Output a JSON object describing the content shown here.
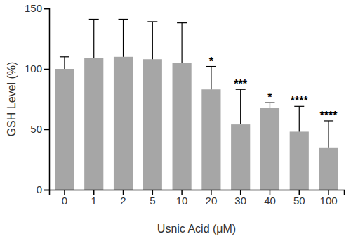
{
  "chart_data": {
    "type": "bar",
    "x_label": "Usnic Acid (μM)",
    "y_label": "GSH Level (%)",
    "categories": [
      "0",
      "1",
      "2",
      "5",
      "10",
      "20",
      "30",
      "40",
      "50",
      "100"
    ],
    "values": [
      100,
      109,
      110,
      108,
      105,
      83,
      54,
      68,
      48,
      35
    ],
    "errors": [
      10,
      32,
      31,
      31,
      33,
      19,
      29,
      4,
      21,
      22
    ],
    "significance": [
      null,
      null,
      null,
      null,
      null,
      "*",
      "***",
      "*",
      "****",
      "****"
    ],
    "color": "#a6a6a6",
    "ylim": [
      0,
      150
    ],
    "yticks": [
      0,
      50,
      100,
      150
    ],
    "grid": false
  }
}
